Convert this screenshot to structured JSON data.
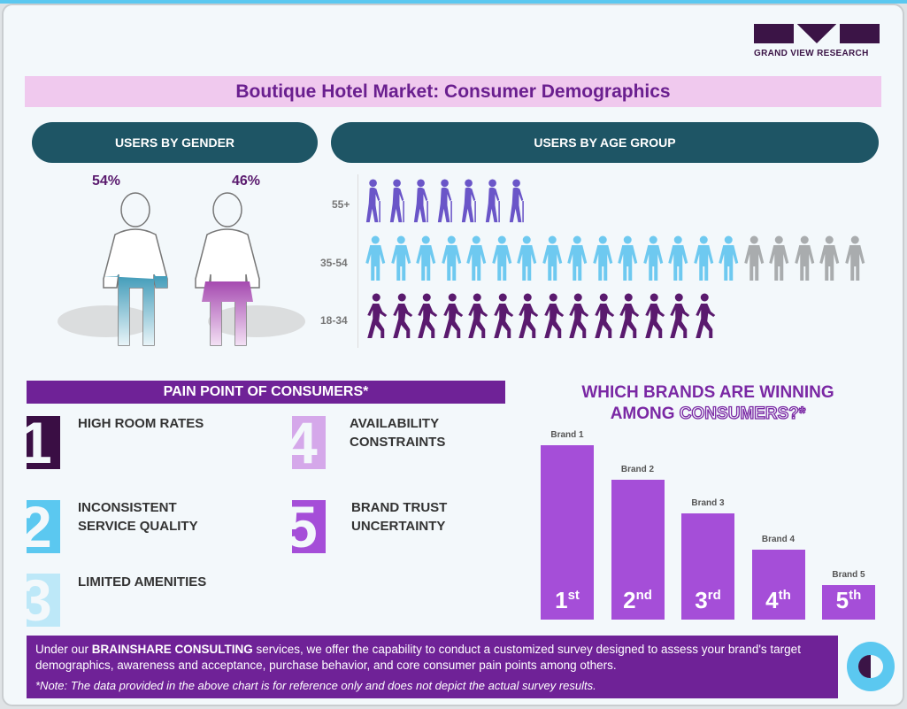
{
  "brand": {
    "logo_text": "GRAND VIEW RESEARCH"
  },
  "title": "Boutique Hotel Market: Consumer Demographics",
  "gender": {
    "header": "USERS BY GENDER",
    "male_pct": "54%",
    "female_pct": "46%",
    "male_color": "#3f9ab8",
    "female_color": "#a54ab0"
  },
  "age": {
    "header": "USERS BY AGE GROUP"
  },
  "pain": {
    "header": "PAIN POINT OF CONSUMERS*",
    "items": [
      {
        "num": "1",
        "label_lines": [
          "HIGH ROOM RATES"
        ],
        "color": "#3a0e44"
      },
      {
        "num": "2",
        "label_lines": [
          "INCONSISTENT",
          "SERVICE QUALITY"
        ],
        "color": "#5bc8f0"
      },
      {
        "num": "3",
        "label_lines": [
          "LIMITED AMENITIES"
        ],
        "color": "#bde8f8"
      },
      {
        "num": "4",
        "label_lines": [
          "AVAILABILITY",
          "CONSTRAINTS"
        ],
        "color": "#d5a8ea"
      },
      {
        "num": "5",
        "label_lines": [
          "BRAND TRUST",
          "UNCERTAINTY"
        ],
        "color": "#a54ed8"
      }
    ]
  },
  "brands": {
    "title_line1": "WHICH BRANDS ARE WINNING",
    "title_line2a": "AMONG ",
    "title_line2b": "CONSUMERS?*"
  },
  "chart_data": [
    {
      "type": "pictogram",
      "title": "USERS BY AGE GROUP",
      "categories": [
        "55+",
        "35-54",
        "18-34"
      ],
      "icons": [
        {
          "category": "55+",
          "count": 7,
          "color": "#6a55c8",
          "icon": "elderly-with-cane-icon"
        },
        {
          "category": "35-54",
          "count": 15,
          "grey_count": 5,
          "color": "#6ec9f0",
          "grey_color": "#a9acae",
          "icon": "man-woman-holding-hands-icon"
        },
        {
          "category": "18-34",
          "count": 14,
          "color": "#5a1a6e",
          "icon": "walking-person-icon"
        }
      ]
    },
    {
      "type": "bar",
      "categories": [
        "Brand 1",
        "Brand 2",
        "Brand 3",
        "Brand 4",
        "Brand 5"
      ],
      "rank_labels": [
        [
          "1",
          "st"
        ],
        [
          "2",
          "nd"
        ],
        [
          "3",
          "rd"
        ],
        [
          "4",
          "th"
        ],
        [
          "5",
          "th"
        ]
      ],
      "relative_values": [
        100,
        80,
        61,
        40,
        20
      ],
      "color": "#a54ed8"
    }
  ],
  "footer": {
    "pre": "Under our ",
    "bold": "BRAINSHARE CONSULTING",
    "post": " services, we offer the capability to conduct a customized survey designed to assess your brand's target demographics, awareness and acceptance, purchase behavior, and core consumer pain points among others.",
    "note": "*Note: The data provided in the above chart is for reference only and does not depict the actual survey results."
  }
}
